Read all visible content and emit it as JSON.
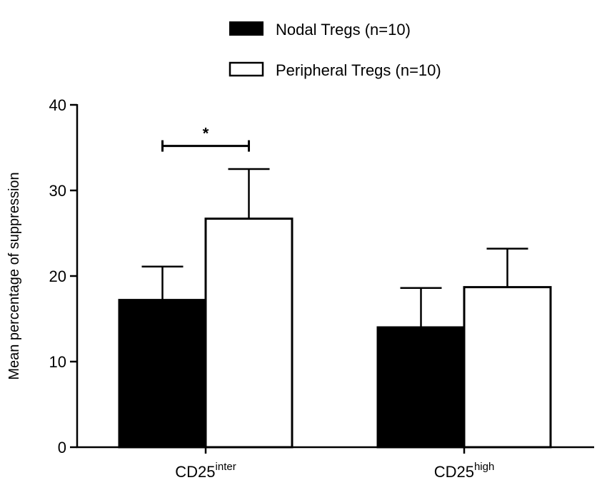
{
  "chart_data": {
    "type": "bar",
    "title": "",
    "xlabel": "",
    "ylabel": "Mean percentage of suppression",
    "ylim": [
      0,
      40
    ],
    "yticks": [
      "0",
      "10",
      "20",
      "30",
      "40"
    ],
    "ytick_values": [
      0,
      10,
      20,
      30,
      40
    ],
    "categories": [
      {
        "base": "CD25",
        "sup": "inter"
      },
      {
        "base": "CD25",
        "sup": "high"
      }
    ],
    "series": [
      {
        "name": "Nodal Tregs (n=10)",
        "fill": "#000000",
        "values": [
          17.2,
          14.0
        ],
        "error_upper": [
          21.1,
          18.6
        ]
      },
      {
        "name": "Peripheral Tregs (n=10)",
        "fill": "#ffffff",
        "values": [
          26.7,
          18.7
        ],
        "error_upper": [
          32.5,
          23.2
        ]
      }
    ],
    "legend_position": "top-center",
    "annotations": [
      {
        "text": "*",
        "category_index": 0,
        "series_from": 0,
        "series_to": 1,
        "y": 35.2
      }
    ]
  }
}
